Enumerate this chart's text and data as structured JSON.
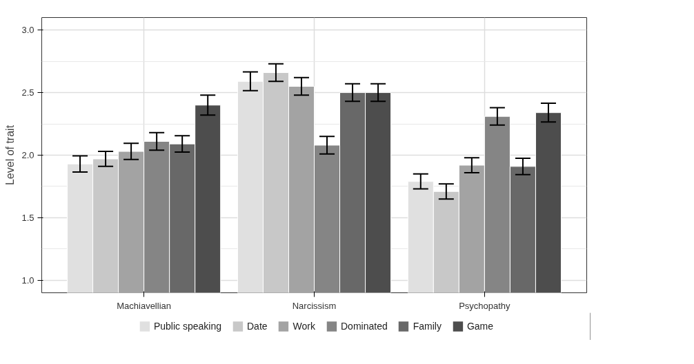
{
  "chart_data": {
    "type": "bar",
    "ylabel": "Level of trait",
    "categories": [
      "Machiavellian",
      "Narcissism",
      "Psychopathy"
    ],
    "series": [
      {
        "name": "Public speaking",
        "color": "#e0e0e0",
        "values": [
          1.93,
          2.59,
          1.79
        ],
        "errors": [
          0.065,
          0.075,
          0.06
        ]
      },
      {
        "name": "Date",
        "color": "#c8c8c8",
        "values": [
          1.97,
          2.66,
          1.71
        ],
        "errors": [
          0.06,
          0.07,
          0.06
        ]
      },
      {
        "name": "Work",
        "color": "#a3a3a3",
        "values": [
          2.03,
          2.55,
          1.92
        ],
        "errors": [
          0.065,
          0.07,
          0.06
        ]
      },
      {
        "name": "Dominated",
        "color": "#858585",
        "values": [
          2.11,
          2.08,
          2.31
        ],
        "errors": [
          0.07,
          0.07,
          0.07
        ]
      },
      {
        "name": "Family",
        "color": "#686868",
        "values": [
          2.09,
          2.5,
          1.91
        ],
        "errors": [
          0.065,
          0.07,
          0.065
        ]
      },
      {
        "name": "Game",
        "color": "#4d4d4d",
        "values": [
          2.4,
          2.5,
          2.34
        ],
        "errors": [
          0.08,
          0.07,
          0.075
        ]
      }
    ],
    "ylim": [
      0.9,
      3.1
    ],
    "yticks": [
      {
        "value": 1,
        "label": "1.0"
      },
      1.5,
      {
        "value": 2,
        "label": "2.0"
      },
      2.5,
      {
        "value": 3,
        "label": "3.0"
      }
    ],
    "grid": true,
    "legend": "bottom"
  }
}
